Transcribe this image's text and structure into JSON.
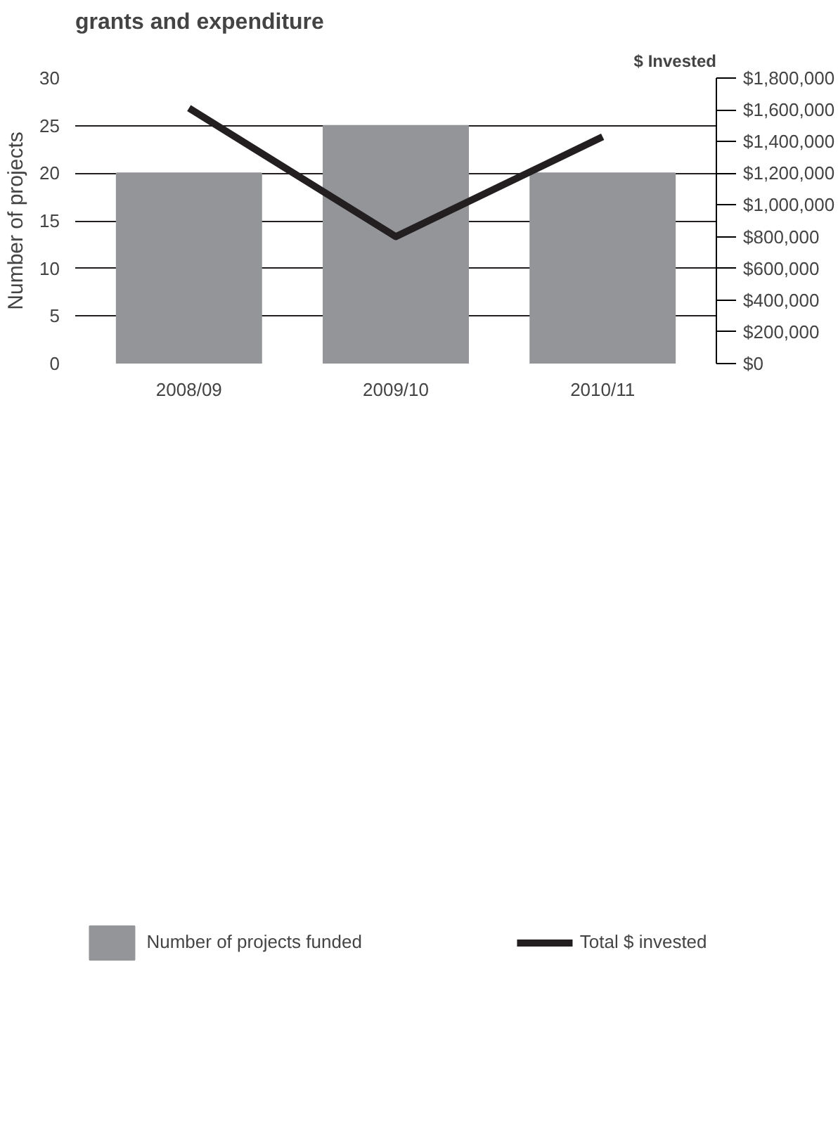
{
  "chart_data": {
    "type": "bar",
    "title": "grants and expenditure",
    "ylabel": "Number of projects",
    "y2label": "$ Invested",
    "categories": [
      "2008/09",
      "2009/10",
      "2010/11"
    ],
    "series": [
      {
        "name": "Number of projects funded",
        "color": "#939598",
        "values": [
          20,
          25,
          20
        ]
      },
      {
        "name": "Total $ invested",
        "type": "line",
        "axis": "y2",
        "color": "#231f20",
        "values": [
          1610000,
          800000,
          1430000
        ]
      }
    ],
    "ylim": [
      0,
      30
    ],
    "yticks": [
      0,
      5,
      10,
      15,
      20,
      25,
      30
    ],
    "y2lim": [
      0,
      1800000
    ],
    "y2ticks": [
      {
        "value": 0,
        "label": "$0"
      },
      {
        "value": 200000,
        "label": "$200,000"
      },
      {
        "value": 400000,
        "label": "$400,000"
      },
      {
        "value": 600000,
        "label": "$600,000"
      },
      {
        "value": 800000,
        "label": "$800,000"
      },
      {
        "value": 1000000,
        "label": "$1,000,000"
      },
      {
        "value": 1200000,
        "label": "$1,200,000"
      },
      {
        "value": 1400000,
        "label": "$1,400,000"
      },
      {
        "value": 1600000,
        "label": "$1,600,000"
      },
      {
        "value": 1800000,
        "label": "$1,800,000"
      }
    ],
    "grid": "y",
    "legend": "bottom",
    "line_style": "solid"
  }
}
